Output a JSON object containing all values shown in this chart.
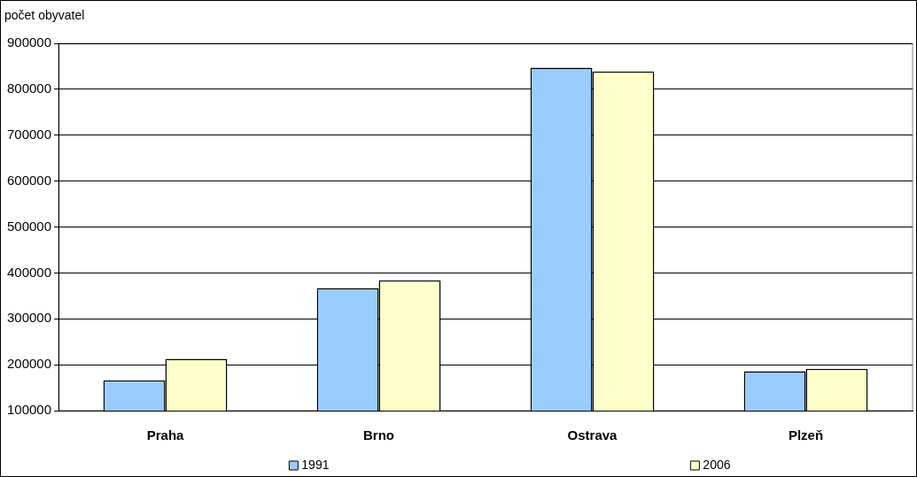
{
  "chart_data": {
    "type": "bar",
    "ylabel": "počet obyvatel",
    "categories": [
      "Praha",
      "Brno",
      "Ostrava",
      "Plzeň"
    ],
    "series": [
      {
        "name": "1991",
        "color": "#99ccff",
        "values": [
          166000,
          367000,
          847000,
          186000
        ]
      },
      {
        "name": "2006",
        "color": "#ffffcc",
        "values": [
          213000,
          384000,
          839000,
          191000
        ]
      }
    ],
    "ylim": [
      100000,
      900000
    ],
    "yticks": [
      100000,
      200000,
      300000,
      400000,
      500000,
      600000,
      700000,
      800000,
      900000
    ],
    "grid": "y",
    "legend": "bottom"
  }
}
